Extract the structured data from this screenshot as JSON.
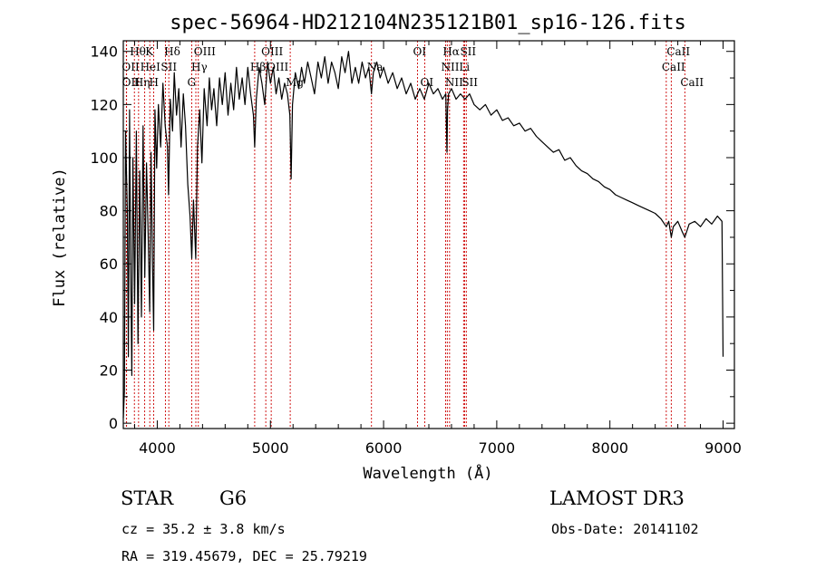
{
  "chart_data": {
    "type": "line",
    "title": "spec-56964-HD212104N235121B01_sp16-126.fits",
    "xlabel": "Wavelength (Å)",
    "ylabel": "Flux (relative)",
    "xlim": [
      3700,
      9100
    ],
    "ylim": [
      -2,
      144
    ],
    "x_ticks": [
      4000,
      5000,
      6000,
      7000,
      8000,
      9000
    ],
    "y_ticks": [
      0,
      20,
      40,
      60,
      80,
      100,
      120,
      140
    ],
    "line_color": "#000000",
    "marker_color": "#cc0000",
    "series": [
      {
        "name": "spectrum",
        "points": [
          [
            3700,
            2
          ],
          [
            3710,
            12
          ],
          [
            3720,
            110
          ],
          [
            3735,
            80
          ],
          [
            3745,
            25
          ],
          [
            3755,
            118
          ],
          [
            3765,
            60
          ],
          [
            3775,
            18
          ],
          [
            3785,
            100
          ],
          [
            3800,
            45
          ],
          [
            3815,
            110
          ],
          [
            3830,
            30
          ],
          [
            3845,
            95
          ],
          [
            3860,
            40
          ],
          [
            3875,
            112
          ],
          [
            3890,
            55
          ],
          [
            3905,
            98
          ],
          [
            3920,
            70
          ],
          [
            3933,
            42
          ],
          [
            3945,
            102
          ],
          [
            3958,
            60
          ],
          [
            3968,
            35
          ],
          [
            3980,
            118
          ],
          [
            3995,
            96
          ],
          [
            4010,
            120
          ],
          [
            4030,
            104
          ],
          [
            4050,
            128
          ],
          [
            4070,
            112
          ],
          [
            4090,
            104
          ],
          [
            4100,
            86
          ],
          [
            4115,
            122
          ],
          [
            4135,
            110
          ],
          [
            4150,
            132
          ],
          [
            4170,
            116
          ],
          [
            4190,
            126
          ],
          [
            4210,
            104
          ],
          [
            4230,
            124
          ],
          [
            4250,
            112
          ],
          [
            4270,
            90
          ],
          [
            4290,
            78
          ],
          [
            4305,
            62
          ],
          [
            4320,
            84
          ],
          [
            4340,
            62
          ],
          [
            4355,
            104
          ],
          [
            4375,
            118
          ],
          [
            4395,
            98
          ],
          [
            4415,
            126
          ],
          [
            4440,
            112
          ],
          [
            4460,
            130
          ],
          [
            4480,
            118
          ],
          [
            4500,
            126
          ],
          [
            4525,
            112
          ],
          [
            4550,
            130
          ],
          [
            4575,
            120
          ],
          [
            4600,
            132
          ],
          [
            4625,
            116
          ],
          [
            4650,
            128
          ],
          [
            4675,
            118
          ],
          [
            4700,
            134
          ],
          [
            4725,
            122
          ],
          [
            4750,
            130
          ],
          [
            4775,
            120
          ],
          [
            4800,
            134
          ],
          [
            4825,
            124
          ],
          [
            4850,
            116
          ],
          [
            4861,
            104
          ],
          [
            4875,
            122
          ],
          [
            4900,
            134
          ],
          [
            4925,
            128
          ],
          [
            4950,
            120
          ],
          [
            4975,
            136
          ],
          [
            5000,
            128
          ],
          [
            5025,
            134
          ],
          [
            5050,
            124
          ],
          [
            5075,
            130
          ],
          [
            5100,
            122
          ],
          [
            5125,
            128
          ],
          [
            5150,
            124
          ],
          [
            5172,
            116
          ],
          [
            5183,
            92
          ],
          [
            5195,
            120
          ],
          [
            5220,
            132
          ],
          [
            5250,
            126
          ],
          [
            5275,
            134
          ],
          [
            5300,
            128
          ],
          [
            5330,
            136
          ],
          [
            5360,
            130
          ],
          [
            5390,
            124
          ],
          [
            5420,
            136
          ],
          [
            5450,
            130
          ],
          [
            5480,
            138
          ],
          [
            5510,
            128
          ],
          [
            5540,
            136
          ],
          [
            5570,
            132
          ],
          [
            5600,
            126
          ],
          [
            5630,
            138
          ],
          [
            5660,
            132
          ],
          [
            5690,
            140
          ],
          [
            5720,
            128
          ],
          [
            5750,
            134
          ],
          [
            5780,
            128
          ],
          [
            5810,
            136
          ],
          [
            5840,
            130
          ],
          [
            5870,
            134
          ],
          [
            5893,
            124
          ],
          [
            5910,
            132
          ],
          [
            5940,
            136
          ],
          [
            5970,
            130
          ],
          [
            6000,
            134
          ],
          [
            6040,
            128
          ],
          [
            6080,
            132
          ],
          [
            6120,
            126
          ],
          [
            6160,
            130
          ],
          [
            6200,
            124
          ],
          [
            6240,
            128
          ],
          [
            6280,
            122
          ],
          [
            6320,
            126
          ],
          [
            6360,
            122
          ],
          [
            6400,
            128
          ],
          [
            6440,
            124
          ],
          [
            6480,
            126
          ],
          [
            6520,
            122
          ],
          [
            6550,
            124
          ],
          [
            6556,
            110
          ],
          [
            6560,
            102
          ],
          [
            6565,
            118
          ],
          [
            6575,
            124
          ],
          [
            6600,
            126
          ],
          [
            6640,
            122
          ],
          [
            6680,
            124
          ],
          [
            6720,
            122
          ],
          [
            6760,
            124
          ],
          [
            6800,
            120
          ],
          [
            6850,
            118
          ],
          [
            6900,
            120
          ],
          [
            6950,
            116
          ],
          [
            7000,
            118
          ],
          [
            7050,
            114
          ],
          [
            7100,
            115
          ],
          [
            7150,
            112
          ],
          [
            7200,
            113
          ],
          [
            7250,
            110
          ],
          [
            7300,
            111
          ],
          [
            7350,
            108
          ],
          [
            7400,
            106
          ],
          [
            7450,
            104
          ],
          [
            7500,
            102
          ],
          [
            7550,
            103
          ],
          [
            7600,
            99
          ],
          [
            7650,
            100
          ],
          [
            7700,
            97
          ],
          [
            7750,
            95
          ],
          [
            7800,
            94
          ],
          [
            7850,
            92
          ],
          [
            7900,
            91
          ],
          [
            7950,
            89
          ],
          [
            8000,
            88
          ],
          [
            8050,
            86
          ],
          [
            8100,
            85
          ],
          [
            8150,
            84
          ],
          [
            8200,
            83
          ],
          [
            8250,
            82
          ],
          [
            8300,
            81
          ],
          [
            8350,
            80
          ],
          [
            8400,
            79
          ],
          [
            8450,
            77
          ],
          [
            8498,
            74
          ],
          [
            8520,
            76
          ],
          [
            8542,
            70
          ],
          [
            8560,
            74
          ],
          [
            8600,
            76
          ],
          [
            8640,
            72
          ],
          [
            8662,
            70
          ],
          [
            8700,
            75
          ],
          [
            8750,
            76
          ],
          [
            8800,
            74
          ],
          [
            8850,
            77
          ],
          [
            8900,
            75
          ],
          [
            8950,
            78
          ],
          [
            8990,
            76
          ],
          [
            9000,
            25
          ]
        ]
      }
    ],
    "spectral_lines": [
      {
        "label": "OII",
        "wavelength": 3727,
        "row": 1
      },
      {
        "label": "OII",
        "wavelength": 3729,
        "row": 2
      },
      {
        "label": "Hθ",
        "wavelength": 3798,
        "row": 0
      },
      {
        "label": "Hη",
        "wavelength": 3835,
        "row": 2
      },
      {
        "label": "HeI",
        "wavelength": 3889,
        "row": 1
      },
      {
        "label": "K",
        "wavelength": 3934,
        "row": 0
      },
      {
        "label": "H",
        "wavelength": 3968,
        "row": 2
      },
      {
        "label": "SII",
        "wavelength": 4072,
        "row": 1
      },
      {
        "label": "Hδ",
        "wavelength": 4102,
        "row": 0
      },
      {
        "label": "OIII",
        "wavelength": 4363,
        "row": 0
      },
      {
        "label": "Hγ",
        "wavelength": 4341,
        "row": 1
      },
      {
        "label": "G",
        "wavelength": 4305,
        "row": 2
      },
      {
        "label": "Hβ",
        "wavelength": 4861,
        "row": 1
      },
      {
        "label": "OIII",
        "wavelength": 4959,
        "row": 0
      },
      {
        "label": "OIII",
        "wavelength": 5007,
        "row": 1
      },
      {
        "label": "Mg",
        "wavelength": 5175,
        "row": 2
      },
      {
        "label": "Na",
        "wavelength": 5893,
        "row": 1
      },
      {
        "label": "OI",
        "wavelength": 6300,
        "row": 0
      },
      {
        "label": "OI",
        "wavelength": 6364,
        "row": 2
      },
      {
        "label": "NII",
        "wavelength": 6548,
        "row": 1
      },
      {
        "label": "Hα",
        "wavelength": 6563,
        "row": 0
      },
      {
        "label": "NII",
        "wavelength": 6583,
        "row": 2
      },
      {
        "label": "SII",
        "wavelength": 6716,
        "row": 0
      },
      {
        "label": "Li",
        "wavelength": 6707,
        "row": 1
      },
      {
        "label": "SII",
        "wavelength": 6731,
        "row": 2
      },
      {
        "label": "CaII",
        "wavelength": 8498,
        "row": 1
      },
      {
        "label": "CaII",
        "wavelength": 8542,
        "row": 0
      },
      {
        "label": "CaII",
        "wavelength": 8662,
        "row": 2
      }
    ]
  },
  "info": {
    "class_label": "STAR",
    "subclass": "G6",
    "survey": "LAMOST DR3",
    "redshift_text": "cz = 35.2 ± 3.8 km/s",
    "obs_date_text": "Obs-Date: 20141102",
    "coords_text": "RA = 319.45679, DEC =  25.79219"
  }
}
